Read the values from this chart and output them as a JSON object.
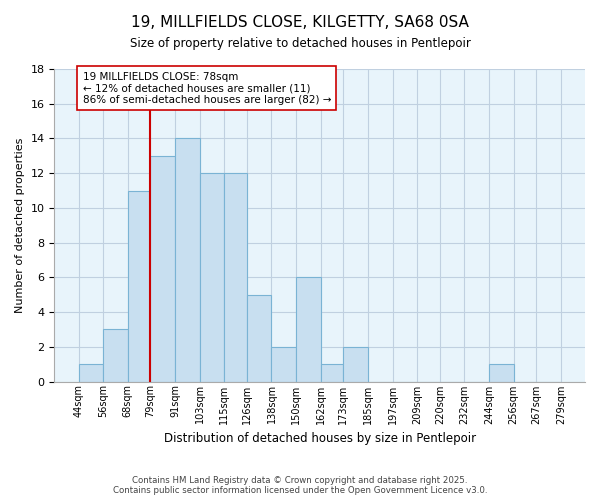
{
  "title": "19, MILLFIELDS CLOSE, KILGETTY, SA68 0SA",
  "subtitle": "Size of property relative to detached houses in Pentlepoir",
  "xlabel": "Distribution of detached houses by size in Pentlepoir",
  "ylabel": "Number of detached properties",
  "bin_edges": [
    44,
    56,
    68,
    79,
    91,
    103,
    115,
    126,
    138,
    150,
    162,
    173,
    185,
    197,
    209,
    220,
    232,
    244,
    256,
    267,
    279
  ],
  "bin_labels": [
    "44sqm",
    "56sqm",
    "68sqm",
    "79sqm",
    "91sqm",
    "103sqm",
    "115sqm",
    "126sqm",
    "138sqm",
    "150sqm",
    "162sqm",
    "173sqm",
    "185sqm",
    "197sqm",
    "209sqm",
    "220sqm",
    "232sqm",
    "244sqm",
    "256sqm",
    "267sqm",
    "279sqm"
  ],
  "counts": [
    1,
    3,
    11,
    13,
    14,
    12,
    12,
    5,
    2,
    6,
    1,
    2,
    0,
    0,
    0,
    0,
    0,
    1,
    0,
    0
  ],
  "bar_color": "#c8dff0",
  "bar_edge_color": "#7ab3d4",
  "property_line_x": 79,
  "property_line_color": "#cc0000",
  "annotation_text": "19 MILLFIELDS CLOSE: 78sqm\n← 12% of detached houses are smaller (11)\n86% of semi-detached houses are larger (82) →",
  "annotation_box_edge_color": "#cc0000",
  "annotation_box_face_color": "#ffffff",
  "ylim": [
    0,
    18
  ],
  "yticks": [
    0,
    2,
    4,
    6,
    8,
    10,
    12,
    14,
    16,
    18
  ],
  "background_color": "#ffffff",
  "plot_bg_color": "#e8f4fb",
  "grid_color": "#c0d0e0",
  "footer_line1": "Contains HM Land Registry data © Crown copyright and database right 2025.",
  "footer_line2": "Contains public sector information licensed under the Open Government Licence v3.0."
}
